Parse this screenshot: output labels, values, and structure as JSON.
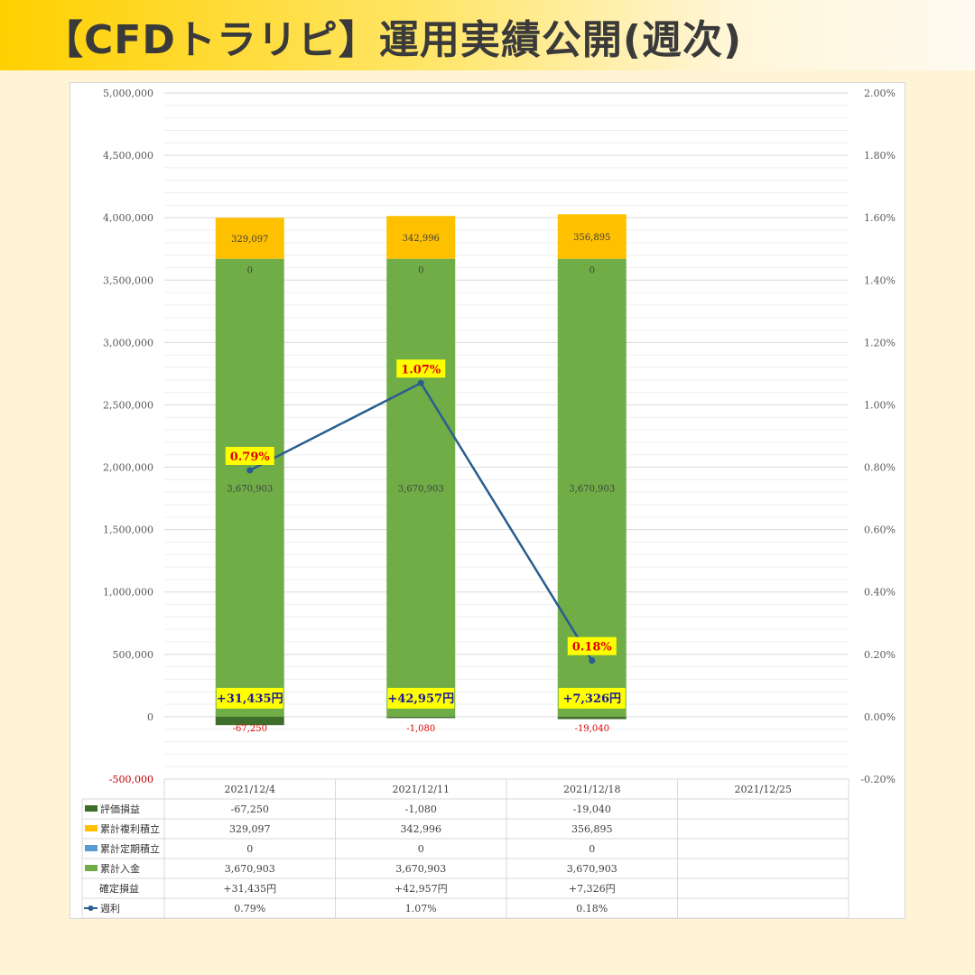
{
  "header": {
    "title": "【CFDトラリピ】運用実績公開(週次)"
  },
  "colors": {
    "eval": "#3f6d2a",
    "reinvest": "#ffc000",
    "periodic": "#5b9bd5",
    "deposit": "#70ad47",
    "line": "#2a5d8f",
    "highlight": "#ffff00",
    "negative": "#e00000",
    "profit_text": "#1a1a9a"
  },
  "chart_data": {
    "type": "bar",
    "stacked": true,
    "categories": [
      "2021/12/4",
      "2021/12/11",
      "2021/12/18",
      "2021/12/25"
    ],
    "series": [
      {
        "name": "評価損益",
        "key": "eval",
        "values": [
          -67250,
          -1080,
          -19040,
          null
        ]
      },
      {
        "name": "累計複利積立",
        "key": "reinvest",
        "values": [
          329097,
          342996,
          356895,
          null
        ]
      },
      {
        "name": "累計定期積立",
        "key": "periodic",
        "values": [
          0,
          0,
          0,
          null
        ]
      },
      {
        "name": "累計入金",
        "key": "deposit",
        "values": [
          3670903,
          3670903,
          3670903,
          null
        ]
      }
    ],
    "line_series": {
      "name": "週利",
      "axis": "right",
      "values": [
        0.79,
        1.07,
        0.18,
        null
      ]
    },
    "realized": {
      "name": "確定損益",
      "values": [
        31435,
        42957,
        7326,
        null
      ]
    },
    "ylim": [
      -500000,
      5000000
    ],
    "y2lim": [
      -0.2,
      2.0
    ],
    "yticks": [
      "5,000,000",
      "4,500,000",
      "4,000,000",
      "3,500,000",
      "3,000,000",
      "2,500,000",
      "2,000,000",
      "1,500,000",
      "1,000,000",
      "500,000",
      "0",
      "-500,000"
    ],
    "y2ticks": [
      "2.00%",
      "1.80%",
      "1.60%",
      "1.40%",
      "1.20%",
      "1.00%",
      "0.80%",
      "0.60%",
      "0.40%",
      "0.20%",
      "0.00%",
      "-0.20%"
    ],
    "bar_labels": {
      "eval": [
        "-67,250",
        "-1,080",
        "-19,040",
        ""
      ],
      "reinvest": [
        "329,097",
        "342,996",
        "356,895",
        ""
      ],
      "periodic": [
        "0",
        "0",
        "0",
        ""
      ],
      "deposit": [
        "3,670,903",
        "3,670,903",
        "3,670,903",
        ""
      ]
    },
    "pct_labels": [
      "0.79%",
      "1.07%",
      "0.18%",
      ""
    ],
    "profit_labels": [
      "+31,435円",
      "+42,957円",
      "+7,326円",
      ""
    ],
    "grid": true,
    "table": {
      "rows": [
        {
          "label": "評価損益",
          "marker": "eval",
          "cells": [
            "-67,250",
            "-1,080",
            "-19,040",
            ""
          ]
        },
        {
          "label": "累計複利積立",
          "marker": "reinvest",
          "cells": [
            "329,097",
            "342,996",
            "356,895",
            ""
          ]
        },
        {
          "label": "累計定期積立",
          "marker": "periodic",
          "cells": [
            "0",
            "0",
            "0",
            ""
          ]
        },
        {
          "label": "累計入金",
          "marker": "deposit",
          "cells": [
            "3,670,903",
            "3,670,903",
            "3,670,903",
            ""
          ]
        },
        {
          "label": "確定損益",
          "marker": "none",
          "cells": [
            "+31,435円",
            "+42,957円",
            "+7,326円",
            ""
          ]
        },
        {
          "label": "週利",
          "marker": "line",
          "cells": [
            "0.79%",
            "1.07%",
            "0.18%",
            ""
          ]
        }
      ]
    }
  }
}
